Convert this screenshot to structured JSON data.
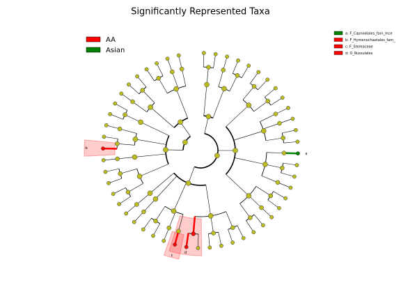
{
  "title": "Significantly Represented Taxa",
  "legend": [
    {
      "label": "AA",
      "color": "#ff0000"
    },
    {
      "label": "Asian",
      "color": "#008000"
    }
  ],
  "clade_legend": [
    {
      "label": "a: F_Capnodiales_fam_Ince",
      "color": "#008000"
    },
    {
      "label": "b: F_Hymenochaetales_fam_",
      "color": "#ff0000"
    },
    {
      "label": "c: F_Stereaceae",
      "color": "#ff0000"
    },
    {
      "label": "d: O_Russulales",
      "color": "#ff0000"
    }
  ],
  "clade_labels": [
    "a",
    "b",
    "c",
    "d"
  ]
}
